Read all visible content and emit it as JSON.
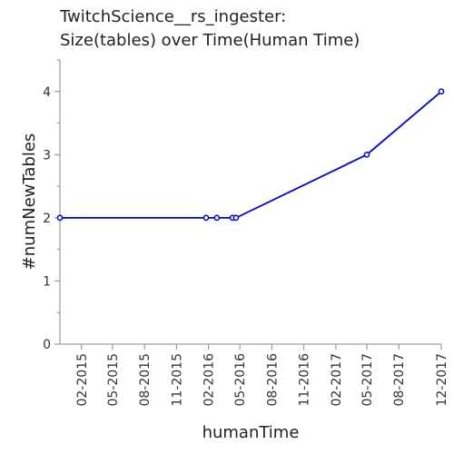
{
  "chart_data": {
    "type": "line",
    "title": [
      "TwitchScience__rs_ingester:",
      "Size(tables) over Time(Human Time)"
    ],
    "xlabel": "humanTime",
    "ylabel": "#numNewTables",
    "x_ticks": [
      {
        "date": "2015-02-01",
        "label": "02-2015"
      },
      {
        "date": "2015-05-01",
        "label": "05-2015"
      },
      {
        "date": "2015-08-01",
        "label": "08-2015"
      },
      {
        "date": "2015-11-01",
        "label": "11-2015"
      },
      {
        "date": "2016-02-01",
        "label": "02-2016"
      },
      {
        "date": "2016-05-01",
        "label": "05-2016"
      },
      {
        "date": "2016-08-01",
        "label": "08-2016"
      },
      {
        "date": "2016-11-01",
        "label": "11-2016"
      },
      {
        "date": "2017-02-01",
        "label": "02-2017"
      },
      {
        "date": "2017-05-01",
        "label": "05-2017"
      },
      {
        "date": "2017-08-01",
        "label": "08-2017"
      },
      {
        "date": "2017-12-01",
        "label": "12-2017"
      }
    ],
    "y_ticks": [
      0,
      1,
      2,
      3,
      4
    ],
    "xlim": [
      "2014-12-01",
      "2017-12-01"
    ],
    "ylim": [
      0,
      4.5
    ],
    "series": [
      {
        "color": "#0000dd",
        "points": [
          {
            "x": "2014-12-01",
            "y": 2
          },
          {
            "x": "2016-01-25",
            "y": 2
          },
          {
            "x": "2016-02-25",
            "y": 2
          },
          {
            "x": "2016-04-10",
            "y": 2
          },
          {
            "x": "2016-04-20",
            "y": 2
          },
          {
            "x": "2017-05-01",
            "y": 3
          },
          {
            "x": "2017-12-01",
            "y": 4
          }
        ]
      }
    ]
  }
}
